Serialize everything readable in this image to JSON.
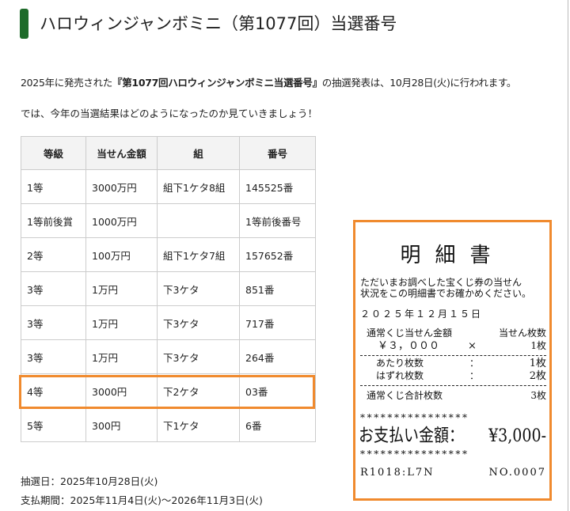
{
  "title": "ハロウィンジャンボミニ（第1077回）当選番号",
  "intro": {
    "pre": "2025年に発売された",
    "bold": "『第1077回ハロウィンジャンボミニ当選番号』",
    "post": "の抽選発表は、10月28日(火)に行われます。"
  },
  "intro2": "では、今年の当選結果はどのようになったのか見ていきましょう！",
  "table": {
    "headers": [
      "等級",
      "当せん金額",
      "組",
      "番号"
    ],
    "rows": [
      [
        "1等",
        "3000万円",
        "組下1ケタ8組",
        "145525番"
      ],
      [
        "1等前後賞",
        "1000万円",
        "",
        "1等前後番号"
      ],
      [
        "2等",
        "100万円",
        "組下1ケタ7組",
        "157652番"
      ],
      [
        "3等",
        "1万円",
        "下3ケタ",
        "851番"
      ],
      [
        "3等",
        "1万円",
        "下3ケタ",
        "717番"
      ],
      [
        "3等",
        "1万円",
        "下3ケタ",
        "264番"
      ],
      [
        "4等",
        "3000円",
        "下2ケタ",
        "03番"
      ],
      [
        "5等",
        "300円",
        "下1ケタ",
        "6番"
      ]
    ],
    "highlighted_row": 6,
    "highlight_color": "#f08a2e"
  },
  "footer": {
    "draw_date": "抽選日：2025年10月28日(火)",
    "payment_period": "支払期間：2025年11月4日(火)〜2026年11月3日(火)"
  },
  "receipt": {
    "title": "明細書",
    "message": "ただいまお調べした宝くじ券の当せん\n状況をこの明細書でお確かめください。",
    "date": "２０２５年１２月１５日",
    "amount_label": "通常くじ当せん金額",
    "count_label": "当せん枚数",
    "amount": "￥３，０００",
    "times": "×",
    "count": "1枚",
    "hit_label": "あたり枚数",
    "hit_sep": "：",
    "hit": "1枚",
    "miss_label": "はずれ枚数",
    "miss_sep": "：",
    "miss": "2枚",
    "total_label": "通常くじ合計枚数",
    "total": "3枚",
    "stars": "****************",
    "pay_label": "お支払い金額：",
    "pay": "¥3,000-",
    "code": "R1018:L7N",
    "no": "NO.0007"
  }
}
